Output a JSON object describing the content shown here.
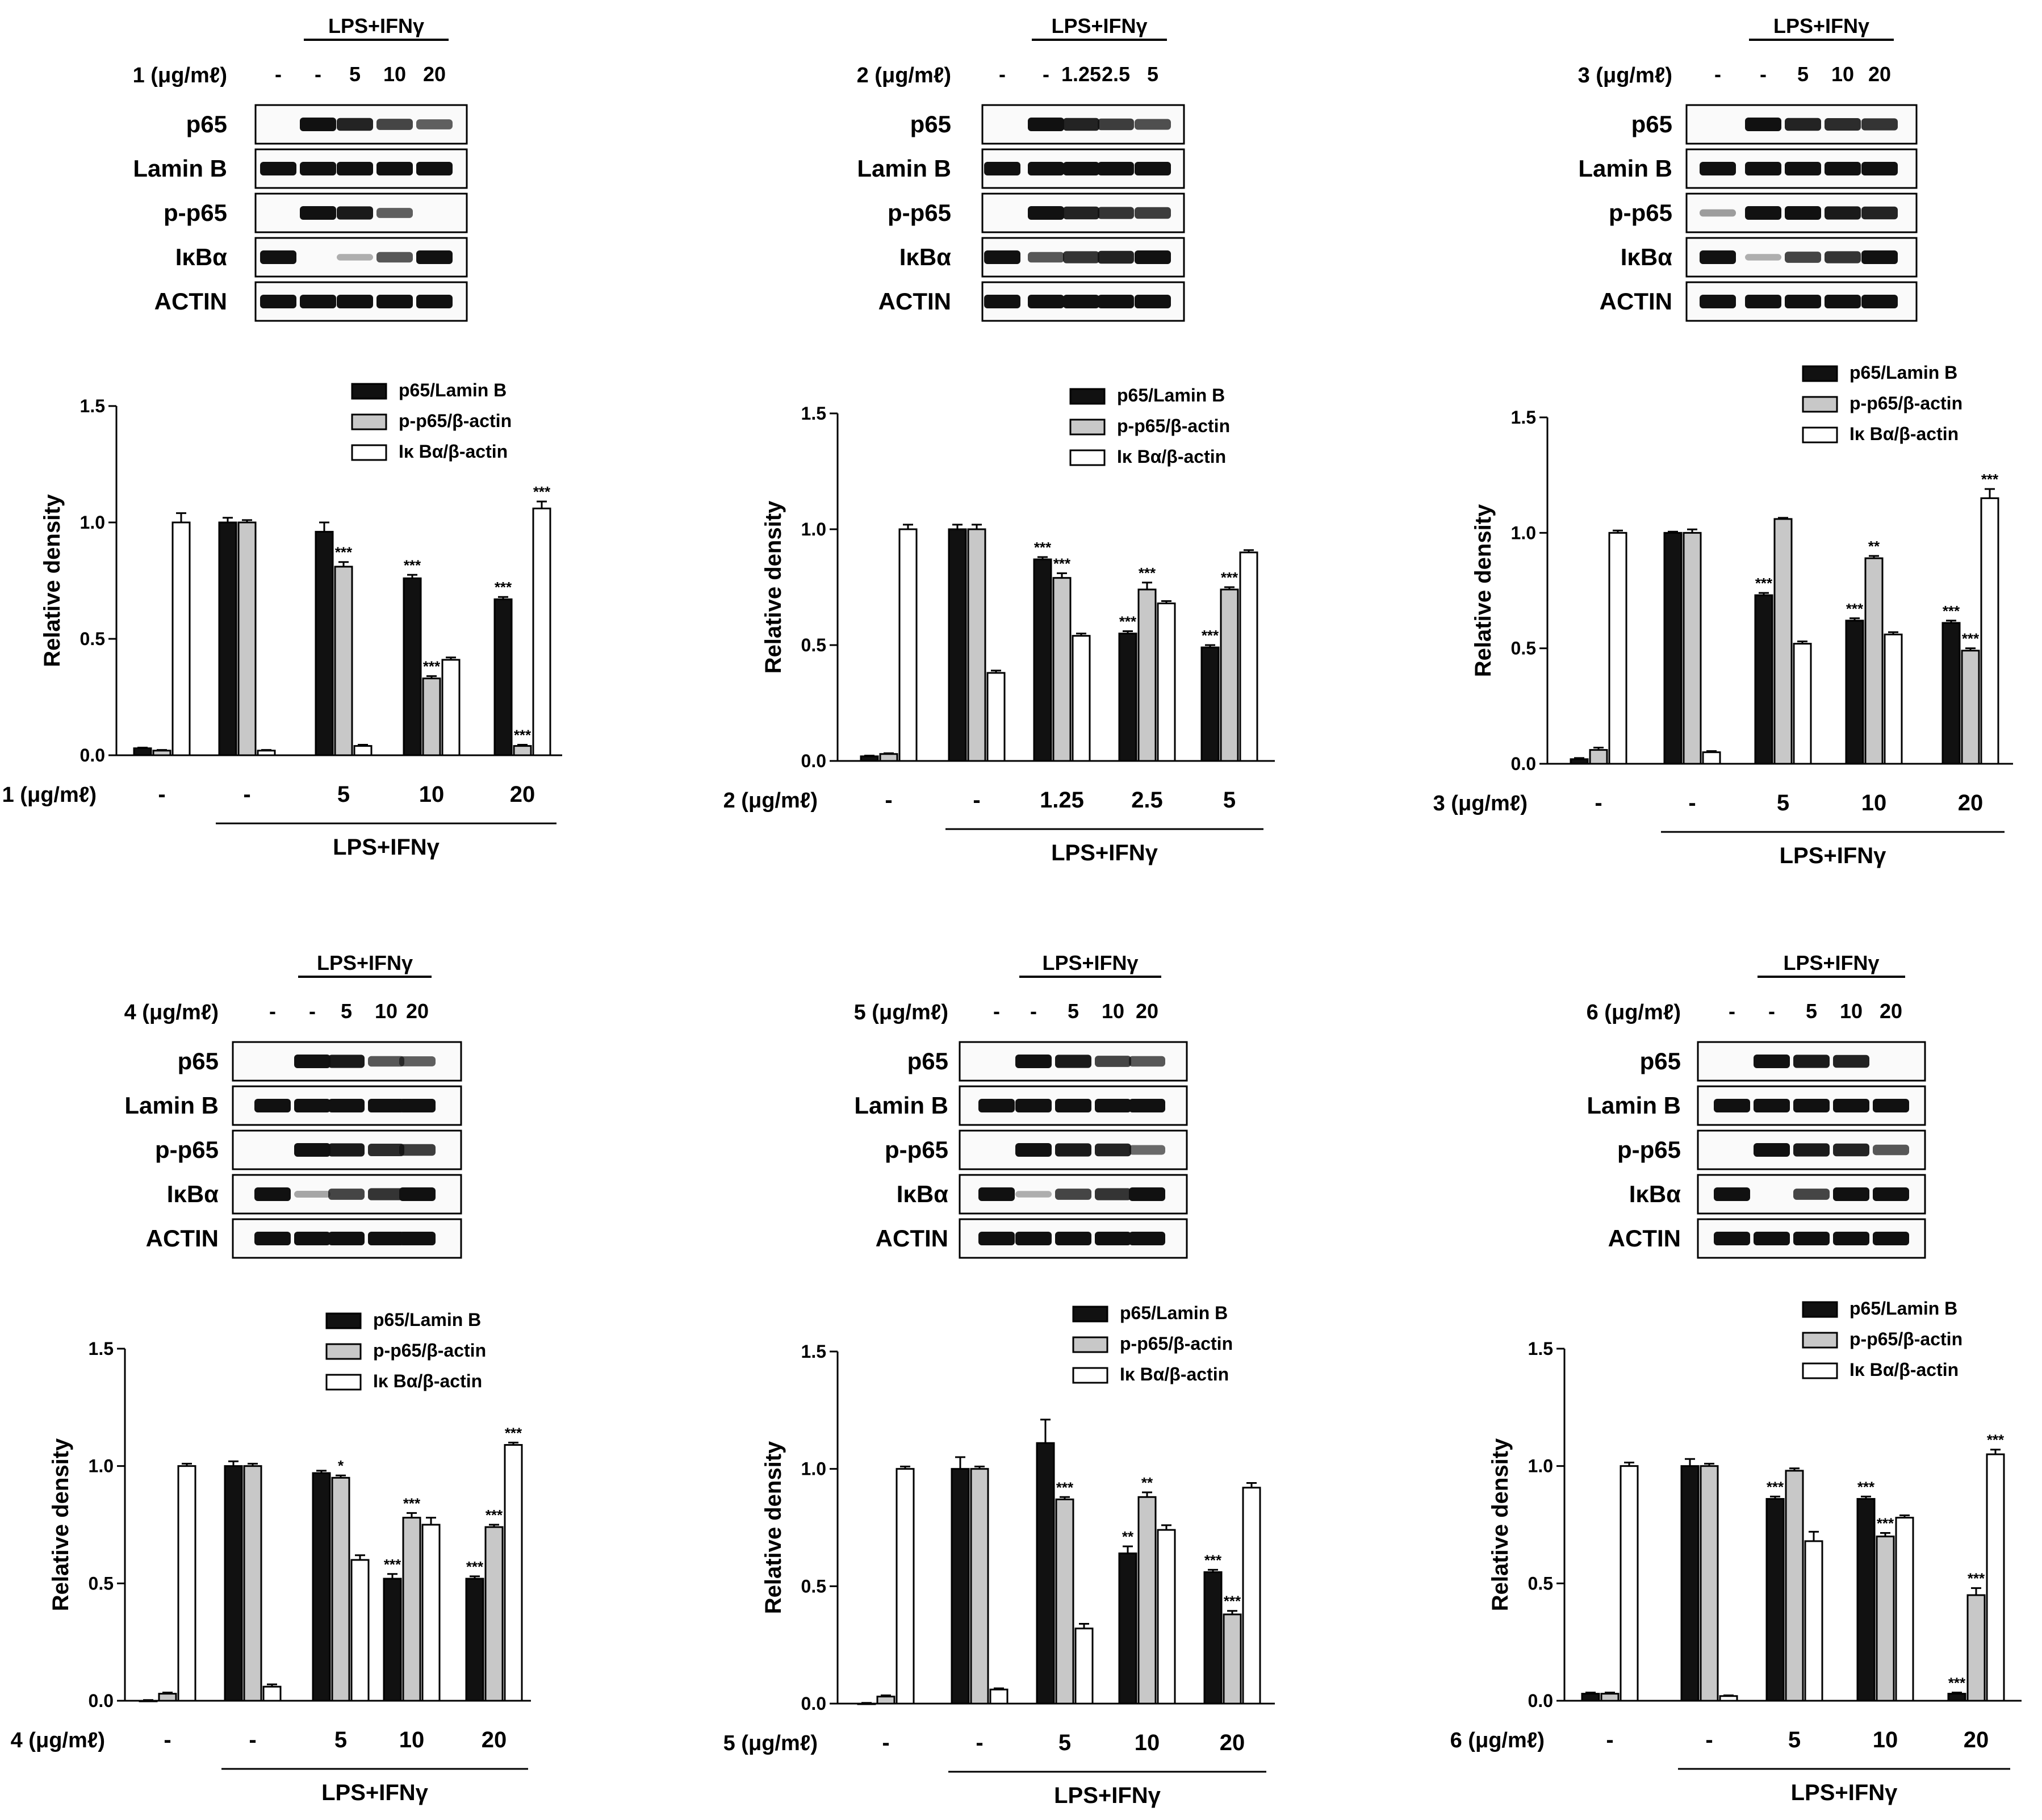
{
  "panels": [
    {
      "compound_label": "1 (μg/mℓ)",
      "doses": [
        "-",
        "-",
        "5",
        "10",
        "20"
      ],
      "treatment_label": "LPS+IFNγ",
      "blot_rows": [
        "p65",
        "Lamin B",
        "p-p65",
        "IκBα",
        "ACTIN"
      ],
      "blot_intensity": [
        [
          0,
          1,
          0.9,
          0.7,
          0.55
        ],
        [
          1,
          1,
          1,
          1,
          1
        ],
        [
          0,
          1,
          0.95,
          0.55,
          0
        ],
        [
          1,
          0,
          0.1,
          0.6,
          1
        ],
        [
          1,
          1,
          1,
          1,
          1
        ]
      ]
    },
    {
      "compound_label": "2 (μg/mℓ)",
      "doses": [
        "-",
        "-",
        "1.25",
        "2.5",
        "5"
      ],
      "treatment_label": "LPS+IFNγ",
      "blot_rows": [
        "p65",
        "Lamin B",
        "p-p65",
        "IκBα",
        "ACTIN"
      ],
      "blot_intensity": [
        [
          0,
          1,
          0.9,
          0.75,
          0.65
        ],
        [
          1,
          1,
          1,
          1,
          1
        ],
        [
          0,
          1,
          0.9,
          0.8,
          0.75
        ],
        [
          1,
          0.6,
          0.8,
          0.9,
          1
        ],
        [
          1,
          1,
          1,
          1,
          1
        ]
      ]
    },
    {
      "compound_label": "3 (μg/mℓ)",
      "doses": [
        "-",
        "-",
        "5",
        "10",
        "20"
      ],
      "treatment_label": "LPS+IFNγ",
      "blot_rows": [
        "p65",
        "Lamin B",
        "p-p65",
        "IκBα",
        "ACTIN"
      ],
      "blot_intensity": [
        [
          0,
          1,
          0.9,
          0.85,
          0.8
        ],
        [
          1,
          1,
          1,
          1,
          1
        ],
        [
          0.2,
          1,
          1,
          0.95,
          0.9
        ],
        [
          1,
          0.1,
          0.7,
          0.8,
          1
        ],
        [
          1,
          1,
          1,
          1,
          1
        ]
      ]
    },
    {
      "compound_label": "4 (μg/mℓ)",
      "doses": [
        "-",
        "-",
        "5",
        "10",
        "20"
      ],
      "treatment_label": "LPS+IFNγ",
      "blot_rows": [
        "p65",
        "Lamin B",
        "p-p65",
        "IκBα",
        "ACTIN"
      ],
      "blot_intensity": [
        [
          0,
          1,
          0.95,
          0.6,
          0.55
        ],
        [
          1,
          1,
          1,
          1,
          1
        ],
        [
          0,
          1,
          0.95,
          0.85,
          0.75
        ],
        [
          1,
          0.15,
          0.7,
          0.8,
          1
        ],
        [
          1,
          1,
          1,
          1,
          1
        ]
      ]
    },
    {
      "compound_label": "5 (μg/mℓ)",
      "doses": [
        "-",
        "-",
        "5",
        "10",
        "20"
      ],
      "treatment_label": "LPS+IFNγ",
      "blot_rows": [
        "p65",
        "Lamin B",
        "p-p65",
        "IκBα",
        "ACTIN"
      ],
      "blot_intensity": [
        [
          0,
          1,
          0.95,
          0.7,
          0.6
        ],
        [
          1,
          1,
          1,
          1,
          1
        ],
        [
          0,
          1,
          0.95,
          0.9,
          0.5
        ],
        [
          1,
          0.1,
          0.7,
          0.8,
          1
        ],
        [
          1,
          1,
          1,
          1,
          1
        ]
      ]
    },
    {
      "compound_label": "6 (μg/mℓ)",
      "doses": [
        "-",
        "-",
        "5",
        "10",
        "20"
      ],
      "treatment_label": "LPS+IFNγ",
      "blot_rows": [
        "p65",
        "Lamin B",
        "p-p65",
        "IκBα",
        "ACTIN"
      ],
      "blot_intensity": [
        [
          0,
          1,
          0.95,
          0.9,
          0
        ],
        [
          1,
          1,
          1,
          1,
          1
        ],
        [
          0,
          1,
          0.95,
          0.9,
          0.6
        ],
        [
          1,
          0,
          0.7,
          1,
          1
        ],
        [
          1,
          1,
          1,
          1,
          1
        ]
      ]
    }
  ],
  "chart_data": [
    {
      "type": "bar",
      "title": "",
      "ylabel": "Relative density",
      "ylim": [
        0,
        1.5
      ],
      "yticks": [
        "0.0",
        "0.5",
        "1.0",
        "1.5"
      ],
      "x_label": "1 (μg/mℓ)",
      "categories": [
        "-",
        "-",
        "5",
        "10",
        "20"
      ],
      "group_label": "LPS+IFNγ",
      "series": [
        {
          "name": "p65/Lamin B",
          "fill": "#111111",
          "values": [
            0.03,
            1.0,
            0.96,
            0.76,
            0.67
          ],
          "errors": [
            0.003,
            0.02,
            0.04,
            0.015,
            0.01
          ],
          "sig": [
            "",
            "",
            "",
            "***",
            "***"
          ]
        },
        {
          "name": "p-p65/β-actin",
          "fill": "#c8c8c8",
          "values": [
            0.02,
            1.0,
            0.81,
            0.33,
            0.04
          ],
          "errors": [
            0.003,
            0.01,
            0.02,
            0.01,
            0.005
          ],
          "sig": [
            "",
            "",
            "***",
            "***",
            "***"
          ]
        },
        {
          "name": "Iκ Bα/β-actin",
          "fill": "#ffffff",
          "values": [
            1.0,
            0.02,
            0.04,
            0.41,
            1.06
          ],
          "errors": [
            0.04,
            0.003,
            0.005,
            0.01,
            0.03
          ],
          "sig": [
            "",
            "",
            "",
            "",
            "***"
          ]
        }
      ]
    },
    {
      "type": "bar",
      "title": "",
      "ylabel": "Relative density",
      "ylim": [
        0,
        1.5
      ],
      "yticks": [
        "0.0",
        "0.5",
        "1.0",
        "1.5"
      ],
      "x_label": "2 (μg/mℓ)",
      "categories": [
        "-",
        "-",
        "1.25",
        "2.5",
        "5"
      ],
      "group_label": "LPS+IFNγ",
      "series": [
        {
          "name": "p65/Lamin B",
          "fill": "#111111",
          "values": [
            0.02,
            1.0,
            0.87,
            0.55,
            0.49
          ],
          "errors": [
            0.003,
            0.02,
            0.01,
            0.01,
            0.01
          ],
          "sig": [
            "",
            "",
            "***",
            "***",
            "***"
          ]
        },
        {
          "name": "p-p65/β-actin",
          "fill": "#c8c8c8",
          "values": [
            0.03,
            1.0,
            0.79,
            0.74,
            0.74
          ],
          "errors": [
            0.003,
            0.02,
            0.02,
            0.03,
            0.01
          ],
          "sig": [
            "",
            "",
            "***",
            "***",
            "***"
          ]
        },
        {
          "name": "Iκ Bα/β-actin",
          "fill": "#ffffff",
          "values": [
            1.0,
            0.38,
            0.54,
            0.68,
            0.9
          ],
          "errors": [
            0.02,
            0.01,
            0.01,
            0.01,
            0.01
          ],
          "sig": [
            "",
            "",
            "",
            "",
            ""
          ]
        }
      ]
    },
    {
      "type": "bar",
      "title": "",
      "ylabel": "Relative density",
      "ylim": [
        0,
        1.5
      ],
      "yticks": [
        "0.0",
        "0.5",
        "1.0",
        "1.5"
      ],
      "x_label": "3 (μg/mℓ)",
      "categories": [
        "-",
        "-",
        "5",
        "10",
        "20"
      ],
      "group_label": "LPS+IFNγ",
      "series": [
        {
          "name": "p65/Lamin B",
          "fill": "#111111",
          "values": [
            0.02,
            1.0,
            0.73,
            0.62,
            0.61
          ],
          "errors": [
            0.005,
            0.005,
            0.01,
            0.01,
            0.01
          ],
          "sig": [
            "",
            "",
            "***",
            "***",
            "***"
          ]
        },
        {
          "name": "p-p65/β-actin",
          "fill": "#c8c8c8",
          "values": [
            0.06,
            1.0,
            1.06,
            0.89,
            0.49
          ],
          "errors": [
            0.01,
            0.015,
            0.005,
            0.01,
            0.01
          ],
          "sig": [
            "",
            "",
            "",
            "**",
            "***"
          ]
        },
        {
          "name": "Iκ Bα/β-actin",
          "fill": "#ffffff",
          "values": [
            1.0,
            0.05,
            0.52,
            0.56,
            1.15
          ],
          "errors": [
            0.01,
            0.005,
            0.01,
            0.01,
            0.04
          ],
          "sig": [
            "",
            "",
            "",
            "",
            "***"
          ]
        }
      ]
    },
    {
      "type": "bar",
      "title": "",
      "ylabel": "Relative density",
      "ylim": [
        0,
        1.5
      ],
      "yticks": [
        "0.0",
        "0.5",
        "1.0",
        "1.5"
      ],
      "x_label": "4 (μg/mℓ)",
      "categories": [
        "-",
        "-",
        "5",
        "10",
        "20"
      ],
      "group_label": "LPS+IFNγ",
      "series": [
        {
          "name": "p65/Lamin B",
          "fill": "#111111",
          "values": [
            0.0,
            1.0,
            0.97,
            0.52,
            0.52
          ],
          "errors": [
            0.003,
            0.02,
            0.01,
            0.02,
            0.01
          ],
          "sig": [
            "",
            "",
            "",
            "***",
            "***"
          ]
        },
        {
          "name": "p-p65/β-actin",
          "fill": "#c8c8c8",
          "values": [
            0.03,
            1.0,
            0.95,
            0.78,
            0.74
          ],
          "errors": [
            0.005,
            0.01,
            0.01,
            0.02,
            0.01
          ],
          "sig": [
            "",
            "",
            "*",
            "***",
            "***"
          ]
        },
        {
          "name": "Iκ Bα/β-actin",
          "fill": "#ffffff",
          "values": [
            1.0,
            0.06,
            0.6,
            0.75,
            1.09
          ],
          "errors": [
            0.01,
            0.01,
            0.02,
            0.03,
            0.01
          ],
          "sig": [
            "",
            "",
            "",
            "",
            "***"
          ]
        }
      ]
    },
    {
      "type": "bar",
      "title": "",
      "ylabel": "Relative density",
      "ylim": [
        0,
        1.5
      ],
      "yticks": [
        "0.0",
        "0.5",
        "1.0",
        "1.5"
      ],
      "x_label": "5 (μg/mℓ)",
      "categories": [
        "-",
        "-",
        "5",
        "10",
        "20"
      ],
      "group_label": "LPS+IFNγ",
      "series": [
        {
          "name": "p65/Lamin B",
          "fill": "#111111",
          "values": [
            0.0,
            1.0,
            1.11,
            0.64,
            0.56
          ],
          "errors": [
            0.003,
            0.05,
            0.1,
            0.03,
            0.01
          ],
          "sig": [
            "",
            "",
            "",
            "**",
            "***"
          ]
        },
        {
          "name": "p-p65/β-actin",
          "fill": "#c8c8c8",
          "values": [
            0.03,
            1.0,
            0.87,
            0.88,
            0.38
          ],
          "errors": [
            0.005,
            0.01,
            0.01,
            0.02,
            0.015
          ],
          "sig": [
            "",
            "",
            "***",
            "**",
            "***"
          ]
        },
        {
          "name": "Iκ Bα/β-actin",
          "fill": "#ffffff",
          "values": [
            1.0,
            0.06,
            0.32,
            0.74,
            0.92
          ],
          "errors": [
            0.01,
            0.005,
            0.02,
            0.02,
            0.02
          ],
          "sig": [
            "",
            "",
            "",
            "",
            ""
          ]
        }
      ]
    },
    {
      "type": "bar",
      "title": "",
      "ylabel": "Relative density",
      "ylim": [
        0,
        1.5
      ],
      "yticks": [
        "0.0",
        "0.5",
        "1.0",
        "1.5"
      ],
      "x_label": "6 (μg/mℓ)",
      "categories": [
        "-",
        "-",
        "5",
        "10",
        "20"
      ],
      "group_label": "LPS+IFNγ",
      "series": [
        {
          "name": "p65/Lamin B",
          "fill": "#111111",
          "values": [
            0.03,
            1.0,
            0.86,
            0.86,
            0.03
          ],
          "errors": [
            0.005,
            0.03,
            0.01,
            0.01,
            0.005
          ],
          "sig": [
            "",
            "",
            "***",
            "***",
            "***"
          ]
        },
        {
          "name": "p-p65/β-actin",
          "fill": "#c8c8c8",
          "values": [
            0.03,
            1.0,
            0.98,
            0.7,
            0.45
          ],
          "errors": [
            0.005,
            0.01,
            0.01,
            0.015,
            0.03
          ],
          "sig": [
            "",
            "",
            "",
            "***",
            "***"
          ]
        },
        {
          "name": "Iκ Bα/β-actin",
          "fill": "#ffffff",
          "values": [
            1.0,
            0.02,
            0.68,
            0.78,
            1.05
          ],
          "errors": [
            0.015,
            0.003,
            0.04,
            0.01,
            0.02
          ],
          "sig": [
            "",
            "",
            "",
            "",
            "***"
          ]
        }
      ]
    }
  ]
}
